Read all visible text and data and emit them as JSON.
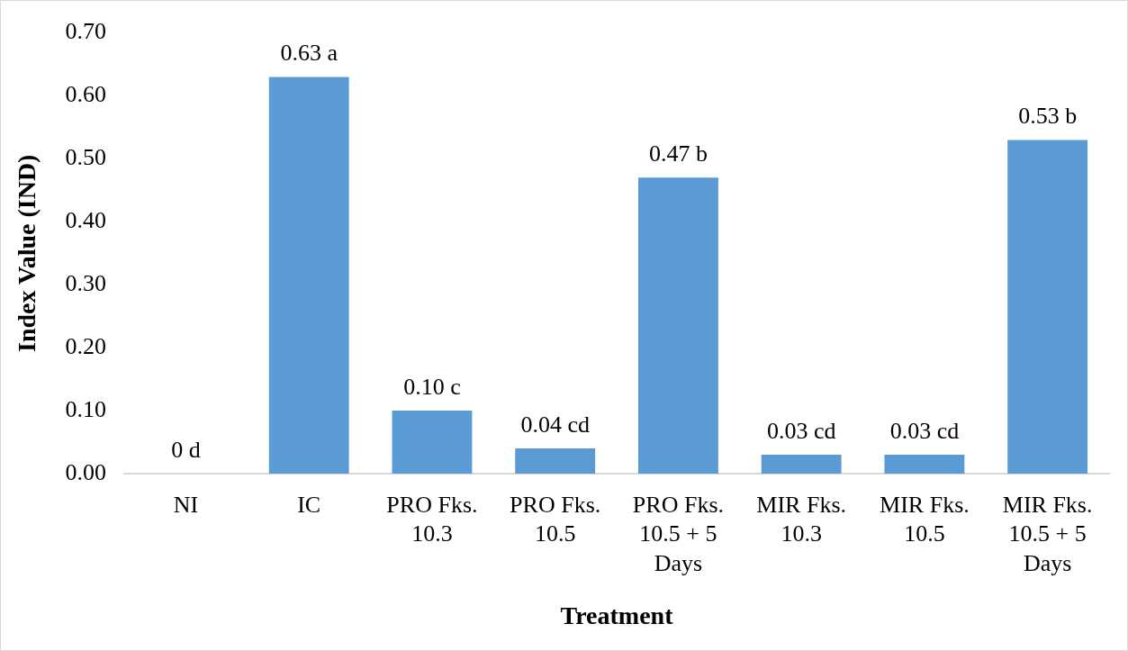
{
  "chart_data": {
    "type": "bar",
    "xlabel": "Treatment",
    "ylabel": "Index Value (IND)",
    "categories": [
      "NI",
      "IC",
      "PRO Fks. 10.3",
      "PRO Fks. 10.5",
      "PRO Fks. 10.5 + 5 Days",
      "MIR Fks. 10.3",
      "MIR Fks. 10.5",
      "MIR Fks. 10.5 + 5 Days"
    ],
    "values": [
      0,
      0.63,
      0.1,
      0.04,
      0.47,
      0.03,
      0.03,
      0.53
    ],
    "value_labels": [
      "0 d",
      "0.63 a",
      "0.10 c",
      "0.04 cd",
      "0.47 b",
      "0.03 cd",
      "0.03 cd",
      "0.53 b"
    ],
    "color": "#5b9bd5",
    "ylim": [
      0,
      0.7
    ],
    "yticks": [
      {
        "value": 0,
        "label": "0.00"
      },
      {
        "value": 0.1,
        "label": "0.10"
      },
      {
        "value": 0.2,
        "label": "0.20"
      },
      {
        "value": 0.3,
        "label": "0.30"
      },
      {
        "value": 0.4,
        "label": "0.40"
      },
      {
        "value": 0.5,
        "label": "0.50"
      },
      {
        "value": 0.6,
        "label": "0.60"
      },
      {
        "value": 0.7,
        "label": "0.70"
      }
    ],
    "grid": false,
    "legend": false
  }
}
